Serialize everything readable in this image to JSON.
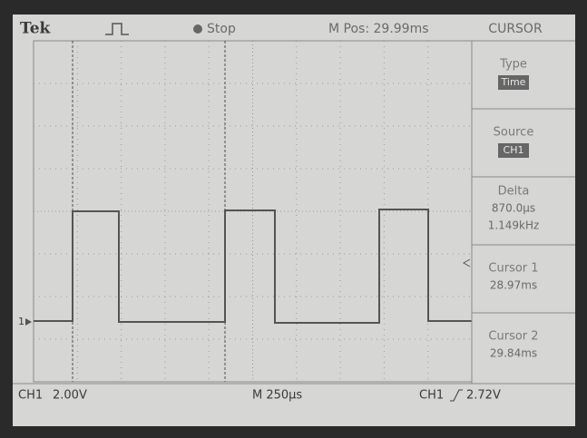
{
  "header": {
    "brand": "Tek",
    "state": "Stop",
    "position": "M Pos: 29.99ms",
    "menu_title": "CURSOR"
  },
  "menu": [
    {
      "label": "Type",
      "value": "Time"
    },
    {
      "label": "Source",
      "value": "CH1"
    },
    {
      "label": "Delta",
      "lines": [
        "870.0µs",
        "1.149kHz"
      ]
    },
    {
      "label": "Cursor 1",
      "lines": [
        "28.97ms"
      ]
    },
    {
      "label": "Cursor 2",
      "lines": [
        "29.84ms"
      ]
    }
  ],
  "channel_marker": "1",
  "footer": {
    "channel": "CH1",
    "volts_div": "2.00V",
    "timebase": "M 250µs",
    "trigger_source": "CH1",
    "trigger_level": "2.72V"
  }
}
